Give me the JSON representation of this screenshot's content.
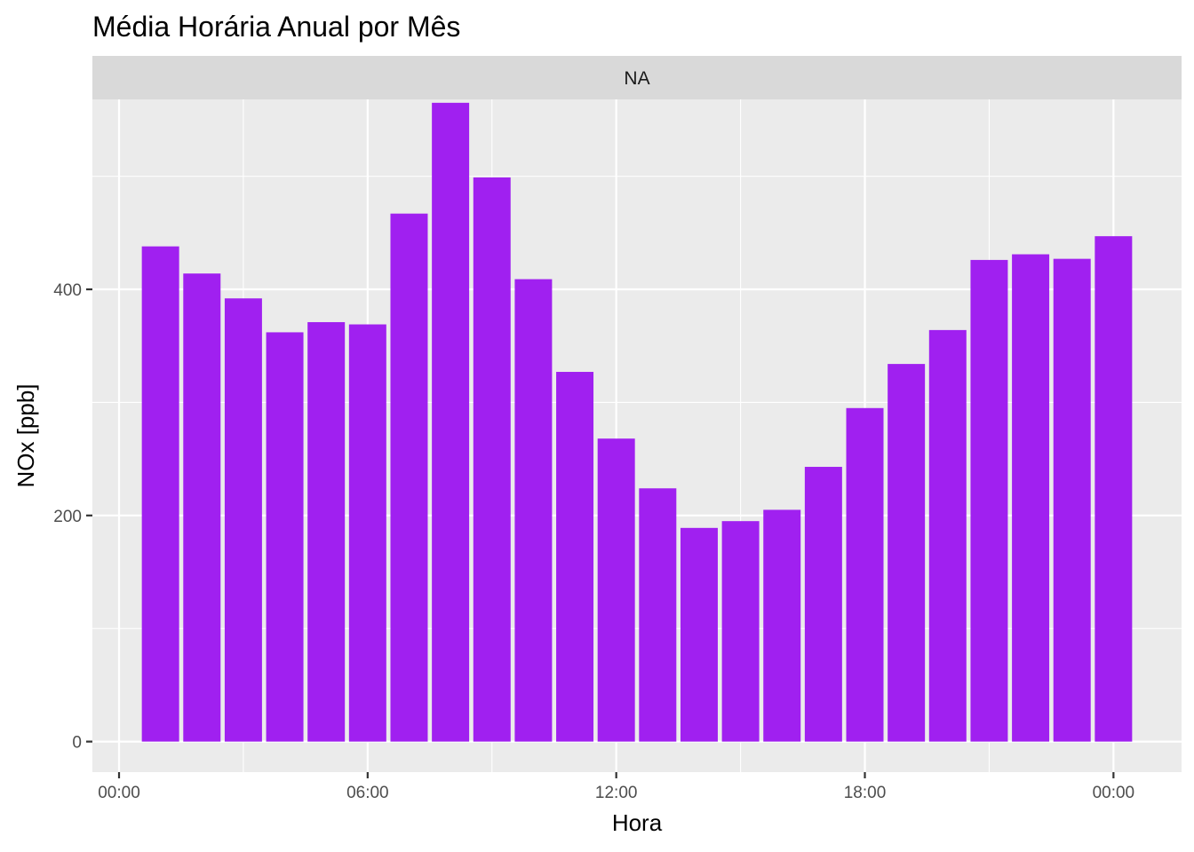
{
  "chart_data": {
    "type": "bar",
    "title": "Média Horária Anual por Mês",
    "facet_label": "NA",
    "xlabel": "Hora",
    "ylabel": "NOx [ppb]",
    "x_tick_labels": [
      "00:00",
      "06:00",
      "12:00",
      "18:00",
      "00:00"
    ],
    "y_ticks": [
      0,
      200,
      400
    ],
    "ylim": [
      -27,
      568
    ],
    "grid": true,
    "legend": "none",
    "bar_color": "#A020F0",
    "categories": [
      "01:00",
      "02:00",
      "03:00",
      "04:00",
      "05:00",
      "06:00",
      "07:00",
      "08:00",
      "09:00",
      "10:00",
      "11:00",
      "12:00",
      "13:00",
      "14:00",
      "15:00",
      "16:00",
      "17:00",
      "18:00",
      "19:00",
      "20:00",
      "21:00",
      "22:00",
      "23:00",
      "00:00"
    ],
    "values": [
      438,
      414,
      392,
      362,
      371,
      369,
      467,
      565,
      499,
      409,
      327,
      268,
      224,
      189,
      195,
      205,
      243,
      295,
      334,
      364,
      426,
      431,
      427,
      447
    ]
  }
}
